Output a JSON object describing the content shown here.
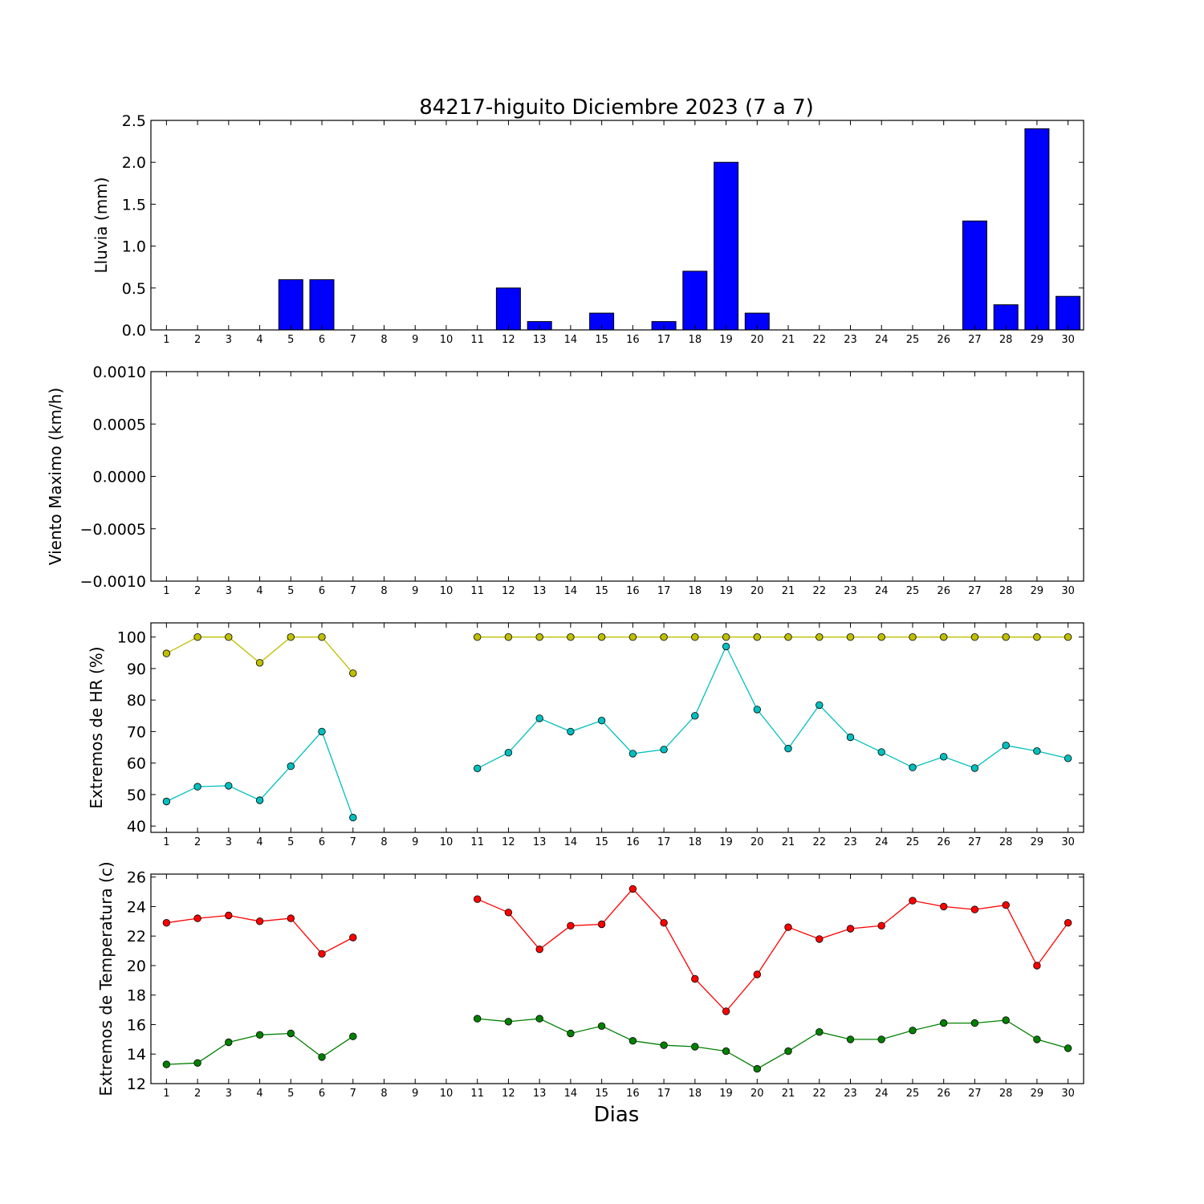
{
  "figure": {
    "title": "84217-higuito Diciembre 2023  (7 a 7)",
    "xlabel": "Dias"
  },
  "chart_data": [
    {
      "type": "bar",
      "ylabel": "Lluvia (mm)",
      "ylim": [
        0,
        2.5
      ],
      "yticks": [
        "0.0",
        "0.5",
        "1.0",
        "1.5",
        "2.0",
        "2.5"
      ],
      "xticks": [
        1,
        2,
        3,
        4,
        5,
        6,
        7,
        8,
        9,
        10,
        11,
        12,
        13,
        14,
        15,
        16,
        17,
        18,
        19,
        20,
        21,
        22,
        23,
        24,
        25,
        26,
        27,
        28,
        29,
        30
      ],
      "series": [
        {
          "color": "#0000ff",
          "x": [
            1,
            2,
            3,
            4,
            5,
            6,
            7,
            8,
            9,
            10,
            11,
            12,
            13,
            14,
            15,
            16,
            17,
            18,
            19,
            20,
            21,
            22,
            23,
            24,
            25,
            26,
            27,
            28,
            29,
            30
          ],
          "values": [
            0,
            0,
            0,
            0,
            0.6,
            0.6,
            0,
            0,
            0,
            0,
            0,
            0.5,
            0.1,
            0,
            0.2,
            0,
            0.1,
            0.7,
            2.0,
            0.2,
            0,
            0,
            0,
            0,
            0,
            0,
            1.3,
            0.3,
            2.4,
            0.4
          ]
        }
      ]
    },
    {
      "type": "line",
      "ylabel": "Viento Maximo (km/h)",
      "ylim": [
        -0.001,
        0.001
      ],
      "yticks": [
        "−0.0010",
        "−0.0005",
        "0.0000",
        "0.0005",
        "0.0010"
      ],
      "xticks": [
        1,
        2,
        3,
        4,
        5,
        6,
        7,
        8,
        9,
        10,
        11,
        12,
        13,
        14,
        15,
        16,
        17,
        18,
        19,
        20,
        21,
        22,
        23,
        24,
        25,
        26,
        27,
        28,
        29,
        30
      ],
      "series": []
    },
    {
      "type": "line",
      "ylabel": "Extremos de HR (%)",
      "ylim": [
        38,
        104.5
      ],
      "yticks": [
        "40",
        "50",
        "60",
        "70",
        "80",
        "90",
        "100"
      ],
      "xticks": [
        1,
        2,
        3,
        4,
        5,
        6,
        7,
        8,
        9,
        10,
        11,
        12,
        13,
        14,
        15,
        16,
        17,
        18,
        19,
        20,
        21,
        22,
        23,
        24,
        25,
        26,
        27,
        28,
        29,
        30
      ],
      "series": [
        {
          "color": "#bfbf00",
          "x": [
            1,
            2,
            3,
            4,
            5,
            6,
            7,
            null,
            11,
            12,
            13,
            14,
            15,
            16,
            17,
            18,
            19,
            20,
            21,
            22,
            23,
            24,
            25,
            26,
            27,
            28,
            29,
            30
          ],
          "values": [
            94.8,
            100,
            100,
            91.8,
            100,
            100,
            88.5,
            null,
            100,
            100,
            100,
            100,
            100,
            100,
            100,
            100,
            100,
            100,
            100,
            100,
            100,
            100,
            100,
            100,
            100,
            100,
            100,
            100
          ]
        },
        {
          "color": "#00bfbf",
          "x": [
            1,
            2,
            3,
            4,
            5,
            6,
            7,
            null,
            11,
            12,
            13,
            14,
            15,
            16,
            17,
            18,
            19,
            20,
            21,
            22,
            23,
            24,
            25,
            26,
            27,
            28,
            29,
            30
          ],
          "values": [
            47.8,
            52.5,
            52.8,
            48.2,
            59,
            70,
            42.7,
            null,
            58.3,
            63.3,
            74.2,
            70,
            73.5,
            63,
            64.3,
            75,
            97,
            77,
            64.6,
            78.4,
            68.2,
            63.5,
            58.6,
            62,
            58.4,
            65.6,
            63.8,
            61.5
          ]
        }
      ]
    },
    {
      "type": "line",
      "ylabel": "Extremos de Temperatura (c)",
      "ylim": [
        12,
        26.2
      ],
      "yticks": [
        "12",
        "14",
        "16",
        "18",
        "20",
        "22",
        "24",
        "26"
      ],
      "xticks": [
        1,
        2,
        3,
        4,
        5,
        6,
        7,
        8,
        9,
        10,
        11,
        12,
        13,
        14,
        15,
        16,
        17,
        18,
        19,
        20,
        21,
        22,
        23,
        24,
        25,
        26,
        27,
        28,
        29,
        30
      ],
      "series": [
        {
          "color": "#ff0000",
          "x": [
            1,
            2,
            3,
            4,
            5,
            6,
            7,
            null,
            11,
            12,
            13,
            14,
            15,
            16,
            17,
            18,
            19,
            20,
            21,
            22,
            23,
            24,
            25,
            26,
            27,
            28,
            29,
            30
          ],
          "values": [
            22.9,
            23.2,
            23.4,
            23.0,
            23.2,
            20.8,
            21.9,
            null,
            24.5,
            23.6,
            21.1,
            22.7,
            22.8,
            25.2,
            22.9,
            19.1,
            16.9,
            19.4,
            22.6,
            21.8,
            22.5,
            22.7,
            24.4,
            24.0,
            23.8,
            24.1,
            20.0,
            22.9
          ]
        },
        {
          "color": "#008000",
          "x": [
            1,
            2,
            3,
            4,
            5,
            6,
            7,
            null,
            11,
            12,
            13,
            14,
            15,
            16,
            17,
            18,
            19,
            20,
            21,
            22,
            23,
            24,
            25,
            26,
            27,
            28,
            29,
            30
          ],
          "values": [
            13.3,
            13.4,
            14.8,
            15.3,
            15.4,
            13.8,
            15.2,
            null,
            16.4,
            16.2,
            16.4,
            15.4,
            15.9,
            14.9,
            14.6,
            14.5,
            14.2,
            13.0,
            14.2,
            15.5,
            15.0,
            15.0,
            15.6,
            16.1,
            16.1,
            16.3,
            15.0,
            14.4
          ]
        }
      ]
    }
  ]
}
